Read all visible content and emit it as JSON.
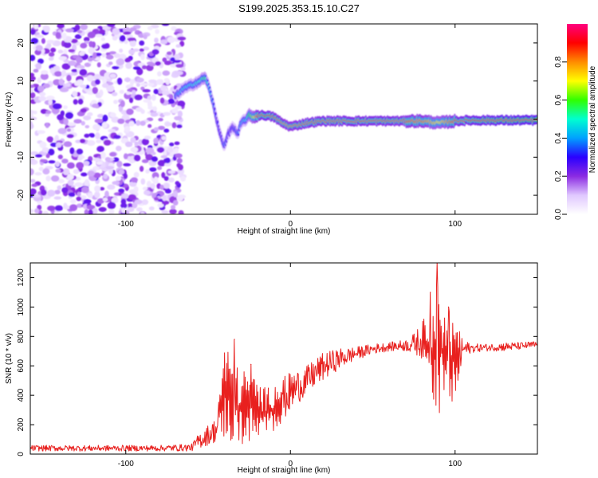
{
  "title": "S199.2025.353.15.10.C27",
  "chart_data": [
    {
      "type": "heatmap",
      "title": "",
      "xlabel": "Height of straight line (km)",
      "ylabel": "Frequency (Hz)",
      "xlim": [
        -158,
        150
      ],
      "ylim": [
        -25,
        25
      ],
      "xticks": [
        -100,
        0,
        100
      ],
      "yticks": [
        -20,
        -10,
        0,
        10,
        20
      ],
      "colorbar": {
        "label": "Normalized spectral amplitude",
        "range": [
          0,
          1
        ],
        "ticks": [
          "0.0",
          "0.2",
          "0.4",
          "0.6",
          "0.8"
        ],
        "colormap": [
          "#ffffff",
          "#e0c8ff",
          "#8b2be2",
          "#2a00ff",
          "#00a0ff",
          "#00ffd0",
          "#30ff00",
          "#ffff00",
          "#ff8c00",
          "#ff0000",
          "#ff0080"
        ]
      },
      "noise_region_x": [
        -158,
        -65
      ],
      "ridge": {
        "x": [
          -70,
          -65,
          -60,
          -55,
          -52,
          -50,
          -48,
          -45,
          -42,
          -40,
          -38,
          -35,
          -32,
          -30,
          -27,
          -25,
          -22,
          -20,
          -15,
          -10,
          -5,
          0,
          10,
          20,
          40,
          60,
          80,
          90,
          100,
          110,
          130,
          150
        ],
        "freq": [
          6,
          8,
          9,
          10,
          11,
          9,
          6,
          0,
          -5,
          -7,
          -4,
          -2,
          -4,
          -1,
          0,
          1,
          0.5,
          1,
          1,
          0.5,
          -1,
          -2,
          -1,
          -0.5,
          -0.5,
          -0.5,
          -0.5,
          -1,
          -0.5,
          -0.3,
          -0.3,
          -0.3
        ],
        "amplitude": [
          0.35,
          0.45,
          0.45,
          0.5,
          0.55,
          0.45,
          0.4,
          0.3,
          0.3,
          0.35,
          0.3,
          0.3,
          0.35,
          0.4,
          0.45,
          0.6,
          0.7,
          0.85,
          0.9,
          0.85,
          0.8,
          0.8,
          0.85,
          0.85,
          0.85,
          0.85,
          0.8,
          0.7,
          0.85,
          0.9,
          0.95,
          0.98
        ]
      }
    },
    {
      "type": "line",
      "title": "",
      "xlabel": "Height of straight line (km)",
      "ylabel": "SNR (10 * v/v)",
      "xlim": [
        -158,
        150
      ],
      "ylim": [
        0,
        1300
      ],
      "xticks": [
        -100,
        0,
        100
      ],
      "yticks": [
        0,
        200,
        400,
        600,
        800,
        1000,
        1200
      ],
      "color": "#e8201e",
      "series": [
        {
          "name": "SNR envelope",
          "x": [
            -158,
            -120,
            -80,
            -60,
            -55,
            -50,
            -45,
            -40,
            -35,
            -30,
            -25,
            -20,
            -15,
            -10,
            -5,
            0,
            5,
            10,
            15,
            20,
            30,
            40,
            50,
            60,
            70,
            75,
            80,
            85,
            88,
            90,
            92,
            95,
            100,
            105,
            110,
            120,
            130,
            140,
            150
          ],
          "low": [
            20,
            20,
            20,
            20,
            40,
            60,
            80,
            100,
            60,
            60,
            70,
            80,
            120,
            150,
            220,
            280,
            350,
            400,
            450,
            500,
            580,
            640,
            680,
            700,
            700,
            680,
            650,
            450,
            300,
            250,
            300,
            280,
            350,
            650,
            690,
            700,
            700,
            710,
            720
          ],
          "high": [
            60,
            60,
            60,
            70,
            150,
            200,
            250,
            780,
            650,
            550,
            620,
            500,
            450,
            480,
            520,
            560,
            580,
            600,
            650,
            690,
            720,
            730,
            750,
            760,
            780,
            820,
            900,
            1000,
            1100,
            1300,
            1100,
            1050,
            900,
            780,
            750,
            750,
            760,
            760,
            770
          ]
        }
      ],
      "peaks": [
        {
          "x": -34,
          "y": 780
        },
        {
          "x": -24,
          "y": 610
        },
        {
          "x": 85,
          "y": 1100
        },
        {
          "x": 89,
          "y": 1300
        },
        {
          "x": 96,
          "y": 1000
        }
      ]
    }
  ]
}
